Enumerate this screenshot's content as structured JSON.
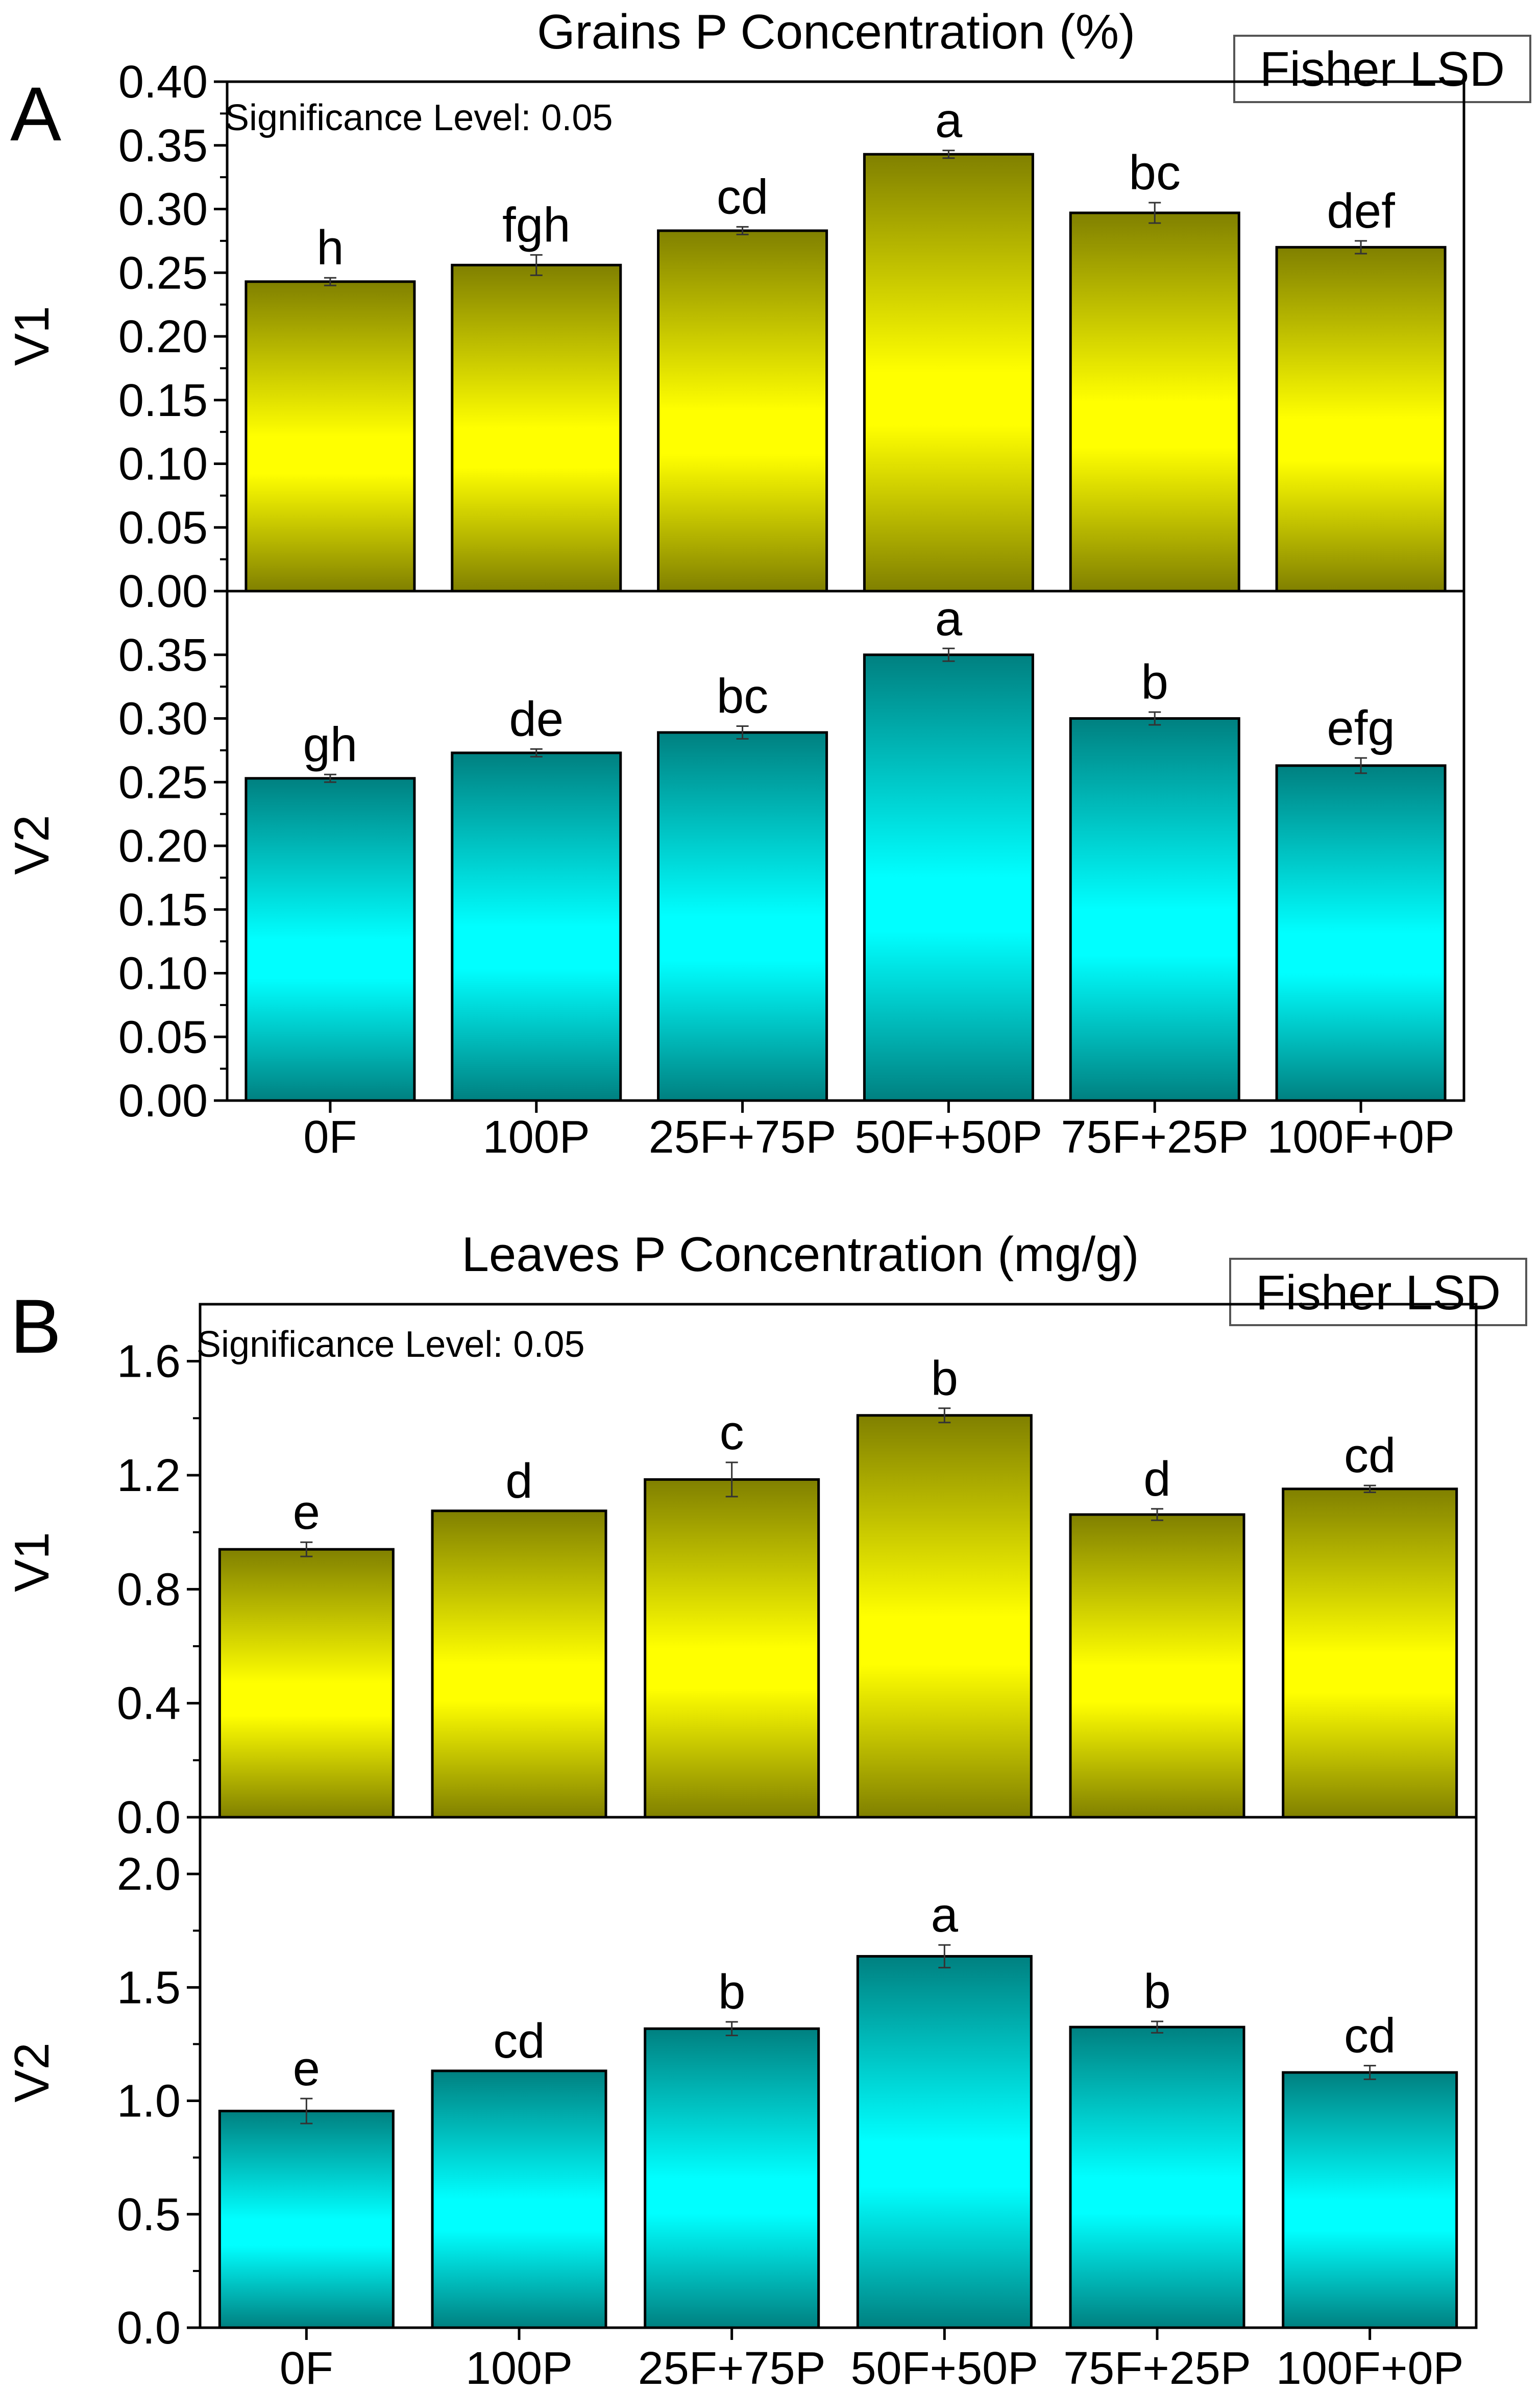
{
  "chart_data": [
    {
      "panel_letter": "A",
      "title": "Grains P Concentration (%)",
      "legend_label": "Fisher LSD",
      "significance_text": "Significance Level: 0.05",
      "type": "bar",
      "categories": [
        "0F",
        "100P",
        "25F+75P",
        "50F+50P",
        "75F+25P",
        "100F+0P"
      ],
      "subplots": [
        {
          "ylabel": "V1",
          "ylim": [
            0,
            0.4
          ],
          "ticks": [
            0,
            0.05,
            0.1,
            0.15,
            0.2,
            0.25,
            0.3,
            0.35,
            0.4
          ],
          "tick_labels": [
            "0.00",
            "0.05",
            "0.10",
            "0.15",
            "0.20",
            "0.25",
            "0.30",
            "0.35",
            "0.40"
          ],
          "values": [
            0.243,
            0.256,
            0.283,
            0.343,
            0.297,
            0.27
          ],
          "errors": [
            0.003,
            0.008,
            0.003,
            0.003,
            0.008,
            0.005
          ],
          "letters": [
            "h",
            "fgh",
            "cd",
            "a",
            "bc",
            "def"
          ],
          "color": "yellow"
        },
        {
          "ylabel": "V2",
          "ylim": [
            0,
            0.4
          ],
          "ticks": [
            0,
            0.05,
            0.1,
            0.15,
            0.2,
            0.25,
            0.3,
            0.35
          ],
          "tick_labels": [
            "0.00",
            "0.05",
            "0.10",
            "0.15",
            "0.20",
            "0.25",
            "0.30",
            "0.35"
          ],
          "values": [
            0.253,
            0.273,
            0.289,
            0.35,
            0.3,
            0.263
          ],
          "errors": [
            0.003,
            0.003,
            0.005,
            0.005,
            0.005,
            0.006
          ],
          "letters": [
            "gh",
            "de",
            "bc",
            "a",
            "b",
            "efg"
          ],
          "color": "cyan"
        }
      ]
    },
    {
      "panel_letter": "B",
      "title": "Leaves P Concentration (mg/g)",
      "legend_label": "Fisher LSD",
      "significance_text": "Significance Level: 0.05",
      "type": "bar",
      "categories": [
        "0F",
        "100P",
        "25F+75P",
        "50F+50P",
        "75F+25P",
        "100F+0P"
      ],
      "subplots": [
        {
          "ylabel": "V1",
          "ylim": [
            0,
            1.8
          ],
          "ticks": [
            0,
            0.4,
            0.8,
            1.2,
            1.6
          ],
          "tick_labels": [
            "0.0",
            "0.4",
            "0.8",
            "1.2",
            "1.6"
          ],
          "values": [
            0.94,
            1.075,
            1.185,
            1.41,
            1.062,
            1.152
          ],
          "errors": [
            0.025,
            0.0,
            0.06,
            0.025,
            0.02,
            0.012
          ],
          "letters": [
            "e",
            "d",
            "c",
            "b",
            "d",
            "cd"
          ],
          "color": "yellow"
        },
        {
          "ylabel": "V2",
          "ylim": [
            0,
            2.25
          ],
          "ticks": [
            0,
            0.5,
            1.0,
            1.5,
            2.0
          ],
          "tick_labels": [
            "0.0",
            "0.5",
            "1.0",
            "1.5",
            "2.0"
          ],
          "values": [
            0.955,
            1.132,
            1.318,
            1.637,
            1.325,
            1.125
          ],
          "errors": [
            0.055,
            0.0,
            0.03,
            0.05,
            0.025,
            0.03
          ],
          "letters": [
            "e",
            "cd",
            "b",
            "a",
            "b",
            "cd"
          ],
          "color": "cyan"
        }
      ]
    }
  ]
}
